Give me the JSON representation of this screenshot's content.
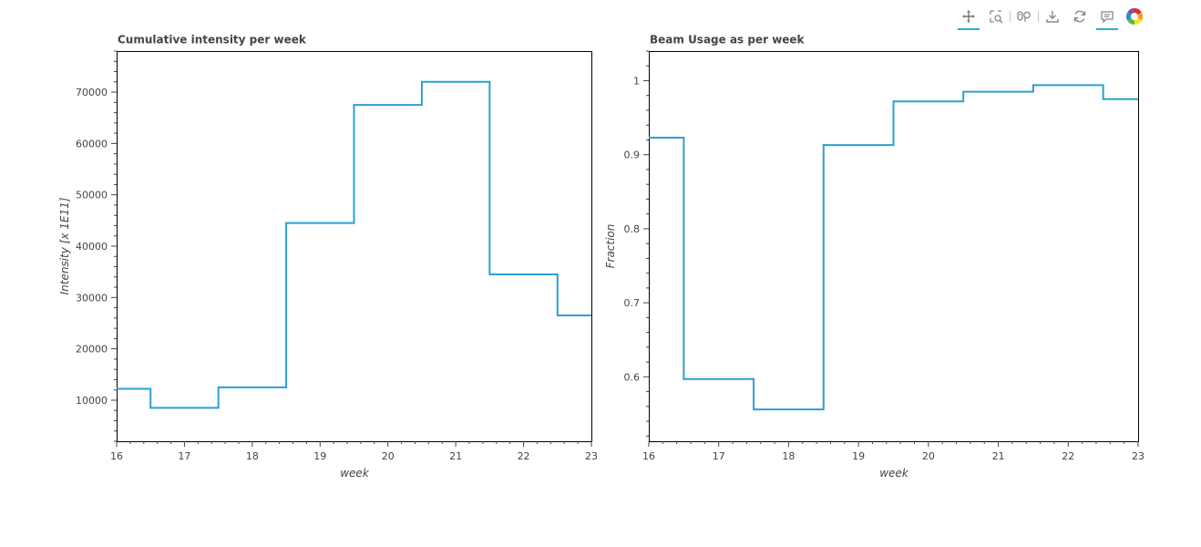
{
  "toolbar": {
    "tools": [
      {
        "name": "pan-tool",
        "icon": "move-icon",
        "active": true
      },
      {
        "name": "box-zoom-tool",
        "icon": "box-zoom-icon",
        "active": false
      },
      {
        "name": "wheel-zoom-tool",
        "icon": "wheel-zoom-icon",
        "active": false
      },
      {
        "name": "save-tool",
        "icon": "download-icon",
        "active": false
      },
      {
        "name": "reset-tool",
        "icon": "refresh-icon",
        "active": false
      },
      {
        "name": "hover-tool",
        "icon": "comment-icon",
        "active": true
      }
    ],
    "logo": "bokeh-logo"
  },
  "line_color": "#2c9fd6",
  "chart_data": [
    {
      "type": "line",
      "step": "center",
      "title": "Cumulative intensity per week",
      "xlabel": "week",
      "ylabel": "Intensity [x 1E11]",
      "x": [
        16,
        17,
        18,
        19,
        20,
        21,
        22,
        23
      ],
      "y": [
        12200,
        8500,
        12500,
        44500,
        67500,
        72000,
        34500,
        26500
      ],
      "xlim": [
        16,
        23
      ],
      "ylim": [
        2000,
        78000
      ],
      "xticks": [
        16,
        17,
        18,
        19,
        20,
        21,
        22,
        23
      ],
      "yticks": [
        10000,
        20000,
        30000,
        40000,
        50000,
        60000,
        70000
      ],
      "grid": false
    },
    {
      "type": "line",
      "step": "center",
      "title": "Beam Usage as per week",
      "xlabel": "week",
      "ylabel": "Fraction",
      "x": [
        16,
        17,
        18,
        19,
        20,
        21,
        22,
        23
      ],
      "y": [
        0.923,
        0.597,
        0.556,
        0.913,
        0.972,
        0.985,
        0.994,
        0.975
      ],
      "xlim": [
        16,
        23
      ],
      "ylim": [
        0.513,
        1.04
      ],
      "xticks": [
        16,
        17,
        18,
        19,
        20,
        21,
        22,
        23
      ],
      "yticks": [
        0.6,
        0.7,
        0.8,
        0.9,
        1
      ],
      "grid": false
    }
  ]
}
